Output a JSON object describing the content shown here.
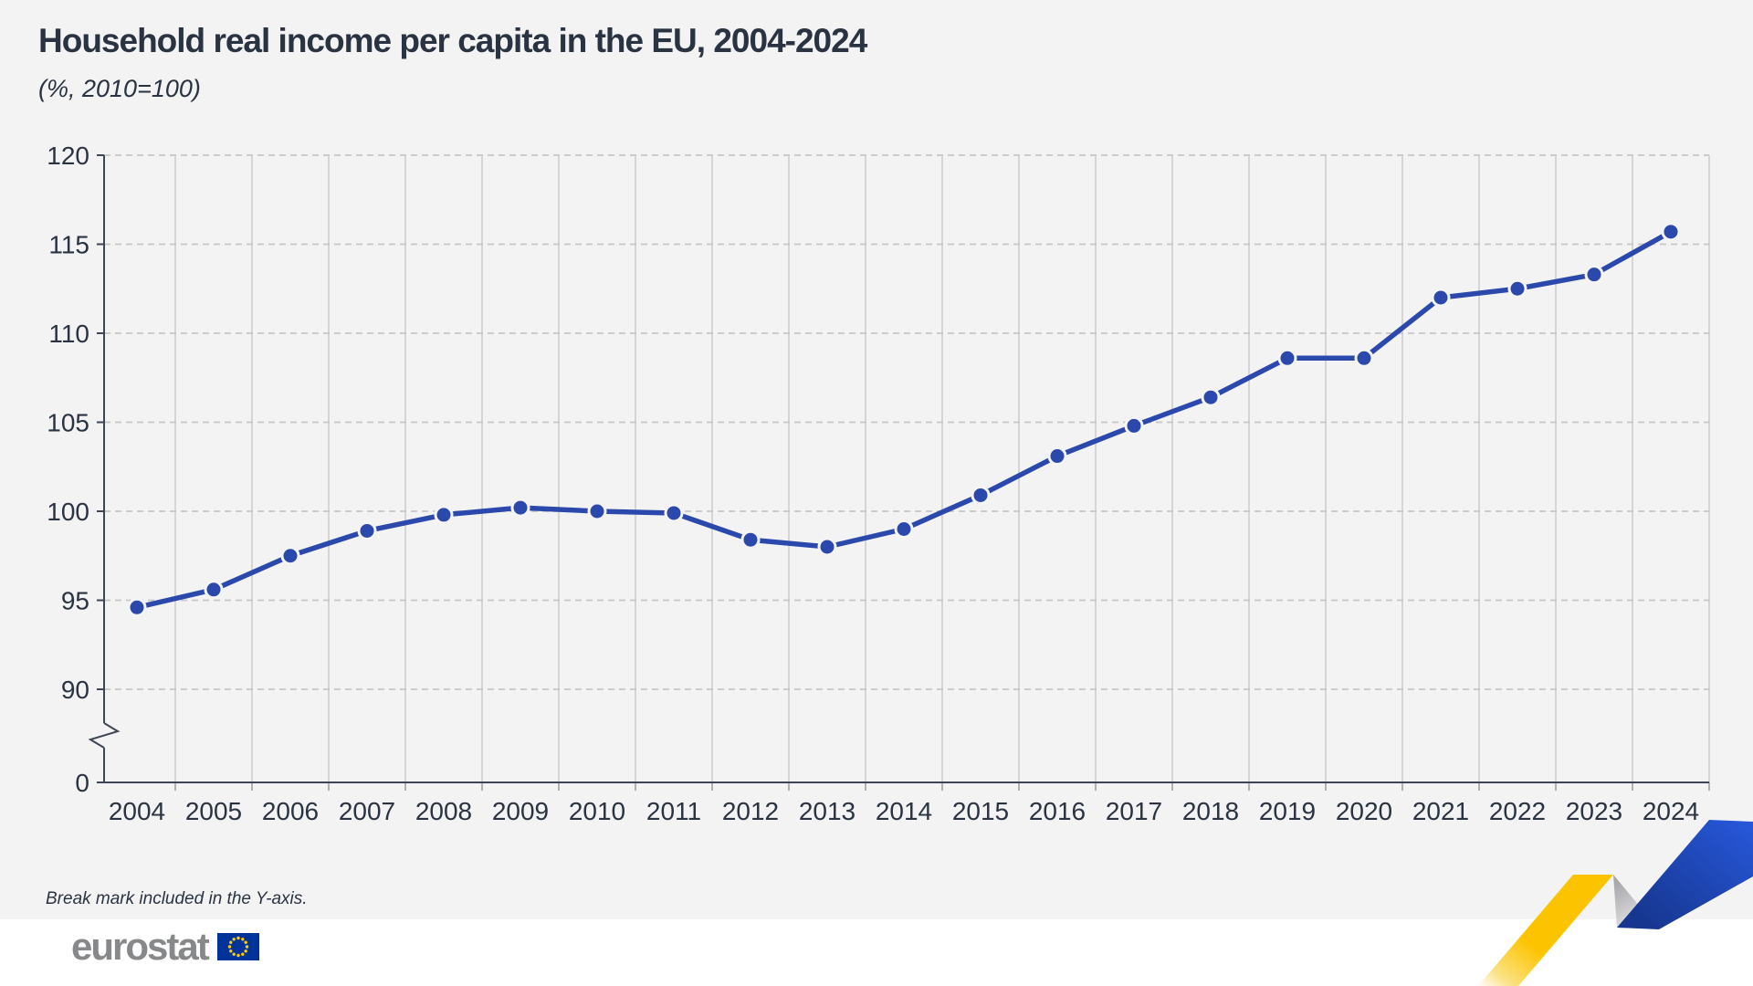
{
  "header": {
    "title": "Household real income per capita in the EU, 2004-2024",
    "subtitle": "(%, 2010=100)"
  },
  "footer": {
    "note": "Break mark included in the Y-axis.",
    "logo_text": "eurostat"
  },
  "colors": {
    "background": "#f3f3f3",
    "line": "#2b49ac",
    "marker_halo": "#f4f4f4",
    "grid_vertical": "#cbcbcb",
    "grid_horizontal": "#c6c6c6",
    "axis": "#3e4555",
    "tick_below_axis": "#9b9b9b",
    "text": "#2a3342",
    "logo_gray": "#87888a",
    "flag_blue": "#003399",
    "flag_star_yellow": "#ffcc00",
    "ribbon_yellow": "#fcc400",
    "ribbon_gray": "#a7a7ab",
    "ribbon_blue_light": "#2757d8",
    "ribbon_blue_dark": "#16368f"
  },
  "chart_data": {
    "type": "line",
    "title": "Household real income per capita in the EU, 2004-2024",
    "subtitle": "(%, 2010=100)",
    "x": [
      "2004",
      "2005",
      "2006",
      "2007",
      "2008",
      "2009",
      "2010",
      "2011",
      "2012",
      "2013",
      "2014",
      "2015",
      "2016",
      "2017",
      "2018",
      "2019",
      "2020",
      "2021",
      "2022",
      "2023",
      "2024"
    ],
    "series": [
      {
        "name": "Household real income per capita (index, 2010=100)",
        "values": [
          94.6,
          95.6,
          97.5,
          98.9,
          99.8,
          100.2,
          100.0,
          99.9,
          98.4,
          98.0,
          99.0,
          100.9,
          103.1,
          104.8,
          106.4,
          108.6,
          108.6,
          112.0,
          112.5,
          113.3,
          115.7
        ]
      }
    ],
    "xlabel": "",
    "ylabel": "",
    "y_ticks": [
      120,
      115,
      110,
      105,
      100,
      95,
      90,
      0
    ],
    "ylim": [
      0,
      120
    ],
    "y_axis_break": true,
    "grid": "vertical solid between years, horizontal dashed at ticks",
    "legend": "none",
    "marker": "filled circle"
  }
}
